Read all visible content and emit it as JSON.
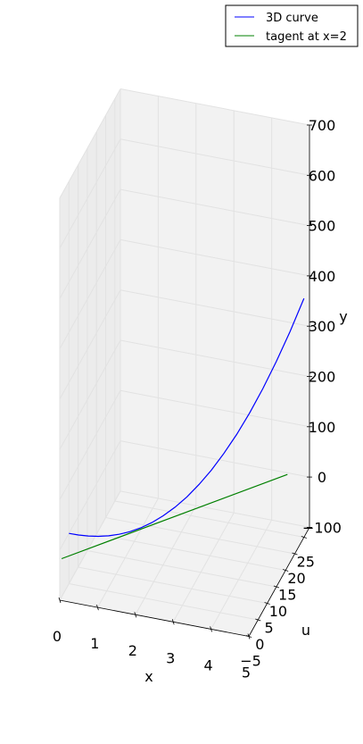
{
  "chart_data": {
    "type": "line",
    "projection": "3d",
    "title": "",
    "xlabel": "x",
    "ylabel": "y",
    "zlabel": "u",
    "xlim": [
      0,
      5
    ],
    "ylim": [
      -100,
      700
    ],
    "ulim": [
      -5,
      28
    ],
    "x_ticks": [
      "0",
      "1",
      "2",
      "3",
      "4",
      "5"
    ],
    "y_ticks": [
      "−100",
      "0",
      "100",
      "200",
      "300",
      "400",
      "500",
      "600",
      "700"
    ],
    "u_ticks": [
      "−5",
      "0",
      "5",
      "10",
      "15",
      "20",
      "25"
    ],
    "grid": true,
    "legend_position": "top-right",
    "series": [
      {
        "name": "3D curve",
        "color": "#0000ff",
        "points": [
          {
            "x": 0.0,
            "y": 0,
            "u": 0
          },
          {
            "x": 0.25,
            "y": 0.05,
            "u": 0.06
          },
          {
            "x": 0.5,
            "y": 0.4,
            "u": 0.25
          },
          {
            "x": 0.75,
            "y": 1.3,
            "u": 0.56
          },
          {
            "x": 1.0,
            "y": 3,
            "u": 1
          },
          {
            "x": 1.25,
            "y": 5.9,
            "u": 1.56
          },
          {
            "x": 1.5,
            "y": 10.1,
            "u": 2.25
          },
          {
            "x": 1.75,
            "y": 16.1,
            "u": 3.06
          },
          {
            "x": 2.0,
            "y": 24,
            "u": 4
          },
          {
            "x": 2.25,
            "y": 34.2,
            "u": 5.06
          },
          {
            "x": 2.5,
            "y": 46.9,
            "u": 6.25
          },
          {
            "x": 2.75,
            "y": 62.4,
            "u": 7.56
          },
          {
            "x": 3.0,
            "y": 81,
            "u": 9
          },
          {
            "x": 3.25,
            "y": 103,
            "u": 10.56
          },
          {
            "x": 3.5,
            "y": 128.6,
            "u": 12.25
          },
          {
            "x": 3.75,
            "y": 158.2,
            "u": 14.06
          },
          {
            "x": 4.0,
            "y": 192,
            "u": 16
          },
          {
            "x": 4.25,
            "y": 230.3,
            "u": 18.06
          },
          {
            "x": 4.5,
            "y": 273.4,
            "u": 20.25
          },
          {
            "x": 4.75,
            "y": 321.5,
            "u": 22.56
          },
          {
            "x": 5.0,
            "y": 375,
            "u": 25
          }
        ]
      },
      {
        "name": "tagent at x=2",
        "color": "#008000",
        "points": [
          {
            "x": 0.0,
            "y": -24,
            "u": -4
          },
          {
            "x": 5.0,
            "y": 84,
            "u": 16
          }
        ]
      }
    ]
  }
}
